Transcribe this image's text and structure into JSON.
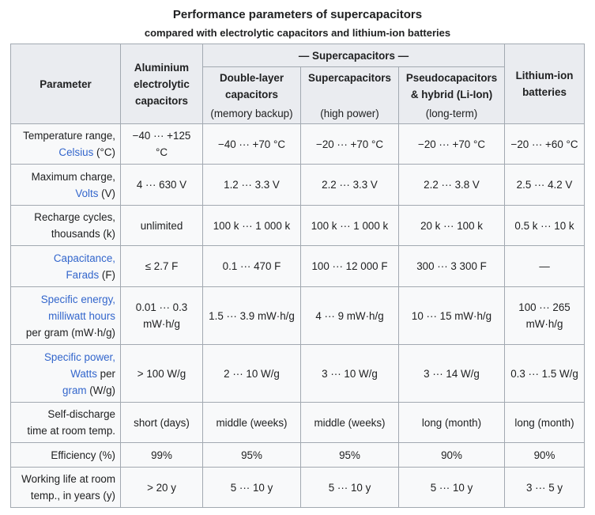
{
  "caption": {
    "title": "Performance parameters of supercapacitors",
    "subtitle": "compared with electrolytic capacitors and lithium-ion batteries"
  },
  "headers": {
    "parameter": "Parameter",
    "aluminium": "Aluminium electrolytic capacitors",
    "supercap_group": "— Supercapacitors —",
    "double_layer": "Double-layer capacitors",
    "double_layer_note": "(memory backup)",
    "supercaps": "Supercapacitors",
    "supercaps_note": "(high power)",
    "pseudo": "Pseudocapacitors & hybrid (Li-Ion)",
    "pseudo_note": "(long-term)",
    "liion": "Lithium-ion batteries"
  },
  "rows": [
    {
      "p1": "Temperature range,",
      "l1": "Celsius",
      "p2": " (°C)",
      "v": [
        "−40 ··· +125 °C",
        "−40 ··· +70 °C",
        "−20 ··· +70 °C",
        "−20 ··· +70 °C",
        "−20 ··· +60 °C"
      ]
    },
    {
      "p1": "Maximum charge,",
      "l1": "Volts",
      "p2": " (V)",
      "v": [
        "4 ··· 630 V",
        "1.2 ··· 3.3 V",
        "2.2 ··· 3.3 V",
        "2.2 ··· 3.8 V",
        "2.5 ··· 4.2 V"
      ]
    },
    {
      "p1": "Recharge cycles,",
      "p2": "thousands (k)",
      "v": [
        "unlimited",
        "100 k ··· 1 000 k",
        "100 k ··· 1 000 k",
        "20 k ··· 100 k",
        "0.5 k ··· 10 k"
      ]
    },
    {
      "l0": "Capacitance,",
      "l1": "Farads",
      "p2": " (F)",
      "v": [
        "≤ 2.7 F",
        "0.1 ··· 470 F",
        "100 ··· 12 000 F",
        "300 ··· 3 300 F",
        "—"
      ]
    },
    {
      "l0": "Specific energy,",
      "l1": "milliwatt hours",
      "p2": "per gram (mW·h/g)",
      "v": [
        "0.01 ··· 0.3 mW·h/g",
        "1.5 ··· 3.9 mW·h/g",
        "4 ··· 9 mW·h/g",
        "10 ··· 15 mW·h/g",
        "100 ··· 265 mW·h/g"
      ]
    },
    {
      "l0": "Specific power,",
      "l1": "Watts",
      "p1b": " per",
      "l2": "gram",
      "p2": " (W/g)",
      "v": [
        "> 100 W/g",
        "2 ··· 10 W/g",
        "3 ··· 10 W/g",
        "3 ··· 14 W/g",
        "0.3 ··· 1.5 W/g"
      ]
    },
    {
      "p1": "Self-discharge",
      "p2": "time at room temp.",
      "v": [
        "short (days)",
        "middle (weeks)",
        "middle (weeks)",
        "long (month)",
        "long (month)"
      ]
    },
    {
      "p1": "Efficiency (%)",
      "v": [
        "99%",
        "95%",
        "95%",
        "90%",
        "90%"
      ]
    },
    {
      "p1": "Working life at room",
      "p2": "temp., in years (y)",
      "v": [
        "> 20 y",
        "5 ··· 10 y",
        "5 ··· 10 y",
        "5 ··· 10 y",
        "3 ··· 5 y"
      ]
    }
  ]
}
